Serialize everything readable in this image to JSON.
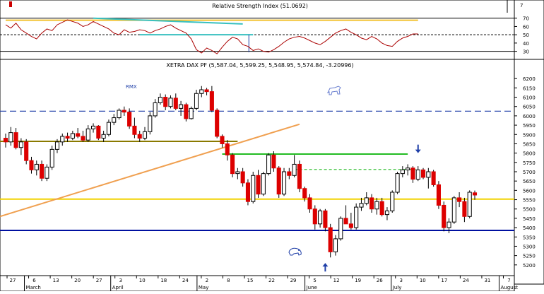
{
  "chart_data": [
    {
      "type": "line",
      "title": "Relative Strength Index (51.0692)",
      "ylim": [
        22,
        80
      ],
      "y_ticks": [
        30,
        40,
        50,
        60,
        70
      ],
      "reference_lines": [
        {
          "y": 70,
          "style": "solid",
          "color": "#000000"
        },
        {
          "y": 50,
          "style": "dashed",
          "color": "#000000"
        },
        {
          "y": 30,
          "style": "solid",
          "color": "#000000"
        }
      ],
      "series": [
        {
          "color": "#aa0000",
          "values": [
            62,
            58,
            64,
            56,
            52,
            48,
            45,
            52,
            57,
            55,
            62,
            65,
            68,
            66,
            64,
            60,
            62,
            66,
            63,
            60,
            57,
            52,
            50,
            56,
            53,
            54,
            56,
            55,
            52,
            55,
            57,
            60,
            62,
            58,
            55,
            52,
            45,
            32,
            28,
            34,
            31,
            27,
            35,
            42,
            47,
            45,
            38,
            36,
            31,
            33,
            30,
            29,
            32,
            36,
            41,
            45,
            47,
            48,
            46,
            43,
            40,
            38,
            42,
            47,
            52,
            55,
            57,
            53,
            50,
            46,
            44,
            48,
            45,
            40,
            37,
            36,
            42,
            46,
            48,
            51,
            51
          ]
        }
      ],
      "trend_lines": [
        {
          "color": "#f2c12e",
          "points": [
            [
              0,
              67.5
            ],
            [
              80,
              67.5
            ]
          ]
        },
        {
          "color": "#38c0c0",
          "points": [
            [
              17,
              70
            ],
            [
              46,
              63
            ]
          ]
        },
        {
          "color": "#38c0c0",
          "points": [
            [
              26,
              50
            ],
            [
              48,
              50
            ]
          ]
        }
      ]
    },
    {
      "type": "candlestick",
      "title": "XETRA DAX PF (5,587.04, 5,599.25, 5,548.95, 5,574.84, -3.20996)",
      "ylim": [
        5150,
        6250
      ],
      "y_ticks": [
        5200,
        5250,
        5300,
        5350,
        5400,
        5450,
        5500,
        5550,
        5600,
        5650,
        5700,
        5750,
        5800,
        5850,
        5900,
        5950,
        6000,
        6050,
        6100,
        6150,
        6200
      ],
      "x_tick_labels": [
        "27",
        "6",
        "13",
        "20",
        "27",
        "3",
        "10",
        "18",
        "24",
        "2",
        "8",
        "15",
        "22",
        "29",
        "5",
        "12",
        "19",
        "26",
        "3",
        "10",
        "17",
        "24",
        "31",
        "7"
      ],
      "month_labels": [
        "March",
        "April",
        "May",
        "June",
        "July",
        "August"
      ],
      "annotations": [
        "RMX"
      ],
      "candles": [
        {
          "open": 5880,
          "high": 5905,
          "low": 5830,
          "close": 5860
        },
        {
          "open": 5860,
          "high": 5940,
          "low": 5840,
          "close": 5910
        },
        {
          "open": 5910,
          "high": 5935,
          "low": 5820,
          "close": 5830
        },
        {
          "open": 5830,
          "high": 5880,
          "low": 5790,
          "close": 5860
        },
        {
          "open": 5860,
          "high": 5875,
          "low": 5740,
          "close": 5760
        },
        {
          "open": 5760,
          "high": 5780,
          "low": 5690,
          "close": 5710
        },
        {
          "open": 5710,
          "high": 5760,
          "low": 5680,
          "close": 5740
        },
        {
          "open": 5740,
          "high": 5760,
          "low": 5650,
          "close": 5665
        },
        {
          "open": 5665,
          "high": 5740,
          "low": 5650,
          "close": 5725
        },
        {
          "open": 5725,
          "high": 5840,
          "low": 5710,
          "close": 5820
        },
        {
          "open": 5820,
          "high": 5875,
          "low": 5800,
          "close": 5860
        },
        {
          "open": 5860,
          "high": 5905,
          "low": 5840,
          "close": 5890
        },
        {
          "open": 5890,
          "high": 5910,
          "low": 5860,
          "close": 5880
        },
        {
          "open": 5880,
          "high": 5920,
          "low": 5870,
          "close": 5905
        },
        {
          "open": 5905,
          "high": 5935,
          "low": 5880,
          "close": 5890
        },
        {
          "open": 5890,
          "high": 5920,
          "low": 5860,
          "close": 5870
        },
        {
          "open": 5870,
          "high": 5950,
          "low": 5860,
          "close": 5930
        },
        {
          "open": 5930,
          "high": 5960,
          "low": 5910,
          "close": 5945
        },
        {
          "open": 5945,
          "high": 5950,
          "low": 5870,
          "close": 5880
        },
        {
          "open": 5880,
          "high": 5920,
          "low": 5860,
          "close": 5900
        },
        {
          "open": 5900,
          "high": 5980,
          "low": 5890,
          "close": 5965
        },
        {
          "open": 5965,
          "high": 6010,
          "low": 5950,
          "close": 5990
        },
        {
          "open": 5990,
          "high": 6040,
          "low": 5980,
          "close": 6030
        },
        {
          "open": 6030,
          "high": 6050,
          "low": 6000,
          "close": 6020
        },
        {
          "open": 6020,
          "high": 6040,
          "low": 5930,
          "close": 5945
        },
        {
          "open": 5945,
          "high": 5990,
          "low": 5880,
          "close": 5900
        },
        {
          "open": 5900,
          "high": 5920,
          "low": 5860,
          "close": 5880
        },
        {
          "open": 5880,
          "high": 5940,
          "low": 5870,
          "close": 5915
        },
        {
          "open": 5915,
          "high": 6020,
          "low": 5900,
          "close": 6000
        },
        {
          "open": 6000,
          "high": 6090,
          "low": 5990,
          "close": 6070
        },
        {
          "open": 6070,
          "high": 6120,
          "low": 6060,
          "close": 6100
        },
        {
          "open": 6100,
          "high": 6115,
          "low": 6030,
          "close": 6050
        },
        {
          "open": 6050,
          "high": 6110,
          "low": 6040,
          "close": 6095
        },
        {
          "open": 6095,
          "high": 6120,
          "low": 6030,
          "close": 6040
        },
        {
          "open": 6040,
          "high": 6080,
          "low": 6000,
          "close": 6060
        },
        {
          "open": 6060,
          "high": 6070,
          "low": 5970,
          "close": 5985
        },
        {
          "open": 5985,
          "high": 6050,
          "low": 5980,
          "close": 6040
        },
        {
          "open": 6040,
          "high": 6140,
          "low": 6030,
          "close": 6120
        },
        {
          "open": 6120,
          "high": 6160,
          "low": 6100,
          "close": 6140
        },
        {
          "open": 6140,
          "high": 6150,
          "low": 6110,
          "close": 6130
        },
        {
          "open": 6130,
          "high": 6160,
          "low": 6020,
          "close": 6030
        },
        {
          "open": 6030,
          "high": 6040,
          "low": 5880,
          "close": 5890
        },
        {
          "open": 5890,
          "high": 5900,
          "low": 5830,
          "close": 5850
        },
        {
          "open": 5850,
          "high": 5870,
          "low": 5760,
          "close": 5790
        },
        {
          "open": 5790,
          "high": 5800,
          "low": 5670,
          "close": 5690
        },
        {
          "open": 5690,
          "high": 5720,
          "low": 5660,
          "close": 5700
        },
        {
          "open": 5700,
          "high": 5720,
          "low": 5620,
          "close": 5640
        },
        {
          "open": 5640,
          "high": 5660,
          "low": 5520,
          "close": 5540
        },
        {
          "open": 5540,
          "high": 5700,
          "low": 5530,
          "close": 5680
        },
        {
          "open": 5680,
          "high": 5710,
          "low": 5560,
          "close": 5580
        },
        {
          "open": 5580,
          "high": 5700,
          "low": 5570,
          "close": 5690
        },
        {
          "open": 5690,
          "high": 5800,
          "low": 5680,
          "close": 5790
        },
        {
          "open": 5790,
          "high": 5810,
          "low": 5700,
          "close": 5720
        },
        {
          "open": 5720,
          "high": 5730,
          "low": 5560,
          "close": 5580
        },
        {
          "open": 5580,
          "high": 5720,
          "low": 5570,
          "close": 5700
        },
        {
          "open": 5700,
          "high": 5720,
          "low": 5660,
          "close": 5680
        },
        {
          "open": 5680,
          "high": 5790,
          "low": 5670,
          "close": 5740
        },
        {
          "open": 5740,
          "high": 5760,
          "low": 5590,
          "close": 5610
        },
        {
          "open": 5610,
          "high": 5620,
          "low": 5540,
          "close": 5560
        },
        {
          "open": 5560,
          "high": 5580,
          "low": 5480,
          "close": 5500
        },
        {
          "open": 5500,
          "high": 5520,
          "low": 5390,
          "close": 5420
        },
        {
          "open": 5420,
          "high": 5500,
          "low": 5400,
          "close": 5490
        },
        {
          "open": 5490,
          "high": 5500,
          "low": 5380,
          "close": 5400
        },
        {
          "open": 5400,
          "high": 5420,
          "low": 5240,
          "close": 5270
        },
        {
          "open": 5270,
          "high": 5360,
          "low": 5250,
          "close": 5340
        },
        {
          "open": 5340,
          "high": 5460,
          "low": 5330,
          "close": 5450
        },
        {
          "open": 5450,
          "high": 5520,
          "low": 5420,
          "close": 5420
        },
        {
          "open": 5420,
          "high": 5480,
          "low": 5390,
          "close": 5400
        },
        {
          "open": 5400,
          "high": 5530,
          "low": 5390,
          "close": 5510
        },
        {
          "open": 5510,
          "high": 5560,
          "low": 5490,
          "close": 5530
        },
        {
          "open": 5530,
          "high": 5590,
          "low": 5520,
          "close": 5560
        },
        {
          "open": 5560,
          "high": 5580,
          "low": 5480,
          "close": 5500
        },
        {
          "open": 5500,
          "high": 5560,
          "low": 5470,
          "close": 5540
        },
        {
          "open": 5540,
          "high": 5560,
          "low": 5460,
          "close": 5470
        },
        {
          "open": 5470,
          "high": 5510,
          "low": 5440,
          "close": 5490
        },
        {
          "open": 5490,
          "high": 5600,
          "low": 5480,
          "close": 5590
        },
        {
          "open": 5590,
          "high": 5700,
          "low": 5580,
          "close": 5690
        },
        {
          "open": 5690,
          "high": 5730,
          "low": 5670,
          "close": 5710
        },
        {
          "open": 5710,
          "high": 5740,
          "low": 5680,
          "close": 5720
        },
        {
          "open": 5720,
          "high": 5730,
          "low": 5640,
          "close": 5660
        },
        {
          "open": 5660,
          "high": 5730,
          "low": 5650,
          "close": 5710
        },
        {
          "open": 5710,
          "high": 5720,
          "low": 5660,
          "close": 5670
        },
        {
          "open": 5670,
          "high": 5720,
          "low": 5610,
          "close": 5700
        },
        {
          "open": 5700,
          "high": 5710,
          "low": 5620,
          "close": 5630
        },
        {
          "open": 5630,
          "high": 5650,
          "low": 5500,
          "close": 5520
        },
        {
          "open": 5520,
          "high": 5540,
          "low": 5380,
          "close": 5400
        },
        {
          "open": 5400,
          "high": 5450,
          "low": 5370,
          "close": 5430
        },
        {
          "open": 5430,
          "high": 5570,
          "low": 5420,
          "close": 5560
        },
        {
          "open": 5560,
          "high": 5590,
          "low": 5510,
          "close": 5540
        },
        {
          "open": 5540,
          "high": 5560,
          "low": 5430,
          "close": 5460
        },
        {
          "open": 5460,
          "high": 5600,
          "low": 5450,
          "close": 5590
        },
        {
          "open": 5587,
          "high": 5599,
          "low": 5549,
          "close": 5575
        }
      ],
      "horizontal_lines": [
        {
          "y": 6025,
          "style": "dashed",
          "color": "#1f3fa8",
          "x_from": 0,
          "x_to": 92
        },
        {
          "y": 5863,
          "style": "solid",
          "color": "#8a7a00",
          "x_from": 0,
          "x_to": 45
        },
        {
          "y": 5795,
          "style": "solid",
          "color": "#22bb22",
          "x_from": 42,
          "x_to": 78
        },
        {
          "y": 5712,
          "style": "dashed",
          "color": "#22bb22",
          "x_from": 56,
          "x_to": 80
        },
        {
          "y": 5553,
          "style": "solid",
          "color": "#f2d200",
          "x_from": 0,
          "x_to": 92
        },
        {
          "y": 5385,
          "style": "solid",
          "color": "#0010a0",
          "x_from": 0,
          "x_to": 92
        }
      ],
      "trend_lines": [
        {
          "color": "#f0a050",
          "points": [
            [
              0,
              5460
            ],
            [
              57,
              5955
            ]
          ]
        }
      ],
      "markers": [
        {
          "shape": "arrow-down",
          "color": "#1f3fa8",
          "x": 80,
          "y": 5800
        },
        {
          "shape": "arrow-up",
          "color": "#1f3fa8",
          "x": 62,
          "y": 5210
        }
      ]
    }
  ]
}
